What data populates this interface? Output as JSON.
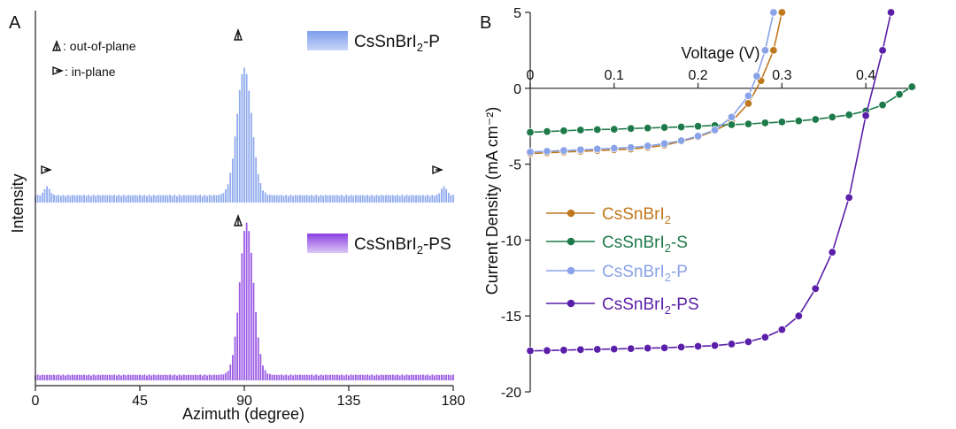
{
  "panel_a": {
    "label": "A",
    "markers": {
      "out_of_plane": ": out-of-plane",
      "in_plane": ": in-plane"
    },
    "legend_top": {
      "prefix": "CsSnBrI",
      "sub": "2",
      "suffix": "-P",
      "color": "#7d9ceb"
    },
    "legend_bottom": {
      "prefix": "CsSnBrI",
      "sub": "2",
      "suffix": "-PS",
      "color": "#8a3fe0"
    }
  },
  "panel_b": {
    "label": "B"
  },
  "chart_data": [
    {
      "type": "bar",
      "title": "",
      "xlabel": "Azimuth (degree)",
      "ylabel": "Intensity",
      "xlim": [
        0,
        180
      ],
      "xticks": [
        0,
        45,
        90,
        135,
        180
      ],
      "grid": false,
      "y_numeric_ticks": false,
      "series": [
        {
          "name": "CsSnBrI2-P",
          "color": "#7d9ceb",
          "baseline": 0.04,
          "peaks": [
            {
              "center": 90,
              "height": 0.72,
              "width": 3.2
            },
            {
              "center": 5,
              "height": 0.05,
              "width": 1.2
            },
            {
              "center": 176,
              "height": 0.05,
              "width": 1.2
            }
          ]
        },
        {
          "name": "CsSnBrI2-PS",
          "color": "#8a3fe0",
          "baseline": 0.03,
          "peaks": [
            {
              "center": 91,
              "height": 0.86,
              "width": 3.0
            }
          ]
        }
      ]
    },
    {
      "type": "line",
      "title": "",
      "xlabel": "Voltage (V)",
      "ylabel": "Current Density (mA cm⁻²)",
      "xlim": [
        0,
        0.46
      ],
      "ylim": [
        -20,
        5
      ],
      "xticks": [
        0,
        0.1,
        0.2,
        0.3,
        0.4
      ],
      "yticks": [
        5,
        0,
        -5,
        -10,
        -15,
        -20
      ],
      "legend_position": "center-left",
      "series": [
        {
          "name": "CsSnBrI2",
          "color": "#c0781e",
          "x": [
            0,
            0.02,
            0.04,
            0.06,
            0.08,
            0.1,
            0.12,
            0.14,
            0.16,
            0.18,
            0.2,
            0.22,
            0.24,
            0.26,
            0.275,
            0.29,
            0.3
          ],
          "y": [
            -4.3,
            -4.25,
            -4.2,
            -4.15,
            -4.1,
            -4.05,
            -4.0,
            -3.9,
            -3.75,
            -3.5,
            -3.2,
            -2.8,
            -2.2,
            -1.0,
            0.5,
            2.5,
            5.0
          ]
        },
        {
          "name": "CsSnBrI2-S",
          "color": "#1e7a4a",
          "x": [
            0,
            0.02,
            0.04,
            0.06,
            0.08,
            0.1,
            0.12,
            0.14,
            0.16,
            0.18,
            0.2,
            0.22,
            0.24,
            0.26,
            0.28,
            0.3,
            0.32,
            0.34,
            0.36,
            0.38,
            0.4,
            0.42,
            0.44,
            0.455
          ],
          "y": [
            -2.9,
            -2.85,
            -2.8,
            -2.75,
            -2.72,
            -2.7,
            -2.65,
            -2.62,
            -2.58,
            -2.55,
            -2.5,
            -2.45,
            -2.4,
            -2.35,
            -2.28,
            -2.22,
            -2.15,
            -2.05,
            -1.9,
            -1.75,
            -1.5,
            -1.1,
            -0.4,
            0.1
          ]
        },
        {
          "name": "CsSnBrI2-P",
          "color": "#8aa3e8",
          "x": [
            0,
            0.02,
            0.04,
            0.06,
            0.08,
            0.1,
            0.12,
            0.14,
            0.16,
            0.18,
            0.2,
            0.22,
            0.24,
            0.26,
            0.27,
            0.28,
            0.29
          ],
          "y": [
            -4.2,
            -4.15,
            -4.1,
            -4.05,
            -4.0,
            -3.95,
            -3.9,
            -3.8,
            -3.65,
            -3.45,
            -3.15,
            -2.75,
            -1.9,
            -0.5,
            0.8,
            2.5,
            5.0
          ]
        },
        {
          "name": "CsSnBrI2-PS",
          "color": "#5a1fa8",
          "x": [
            0,
            0.02,
            0.04,
            0.06,
            0.08,
            0.1,
            0.12,
            0.14,
            0.16,
            0.18,
            0.2,
            0.22,
            0.24,
            0.26,
            0.28,
            0.3,
            0.32,
            0.34,
            0.36,
            0.38,
            0.4,
            0.42,
            0.43
          ],
          "y": [
            -17.3,
            -17.28,
            -17.25,
            -17.22,
            -17.2,
            -17.18,
            -17.15,
            -17.12,
            -17.1,
            -17.05,
            -17.0,
            -16.95,
            -16.85,
            -16.7,
            -16.4,
            -15.9,
            -15.0,
            -13.2,
            -10.8,
            -7.2,
            -1.8,
            2.5,
            5.0
          ]
        }
      ]
    }
  ]
}
